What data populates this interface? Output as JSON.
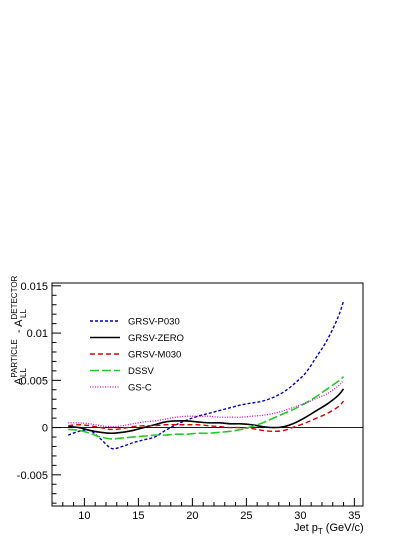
{
  "chart_data": {
    "type": "line",
    "xlabel": {
      "main": "Jet p",
      "sub": "T",
      "unit": " (GeV/c)"
    },
    "ylabel": {
      "a1": "A",
      "a1_sub": "LL",
      "a1_sup": "PARTICLE",
      "minus": " - ",
      "a2": "A",
      "a2_sub": "LL",
      "a2_sup": "DETECTOR"
    },
    "xlim": [
      7,
      35.8
    ],
    "ylim": [
      -0.0083,
      0.0153
    ],
    "xticks": [
      {
        "value": 10,
        "label": "10"
      },
      {
        "value": 15,
        "label": "15"
      },
      {
        "value": 20,
        "label": "20"
      },
      {
        "value": 25,
        "label": "25"
      },
      {
        "value": 30,
        "label": "30"
      },
      {
        "value": 35,
        "label": "35"
      }
    ],
    "yticks": [
      {
        "value": -0.005,
        "label": "-0.005"
      },
      {
        "value": 0,
        "label": "0"
      },
      {
        "value": 0.005,
        "label": "0.005"
      },
      {
        "value": 0.01,
        "label": "0.01"
      },
      {
        "value": 0.015,
        "label": "0.015"
      }
    ],
    "zero_line": true,
    "legend_position": "upper-left",
    "series": [
      {
        "name": "GRSV-P030",
        "color": "#0000cc",
        "dash": "3,2",
        "width": 1.4,
        "x": [
          8.5,
          9.5,
          10.5,
          11.5,
          12.5,
          13.5,
          14.5,
          15.5,
          16.5,
          17.5,
          18.5,
          19.5,
          20.5,
          21.5,
          22.5,
          23.5,
          24.5,
          25.5,
          26.5,
          27.5,
          28.5,
          29.5,
          30.5,
          31.5,
          32.5,
          33.5,
          34.0
        ],
        "y": [
          -0.0008,
          -0.0004,
          -0.0003,
          -0.0012,
          -0.0022,
          -0.002,
          -0.0016,
          -0.0013,
          -0.001,
          -0.0003,
          0.0003,
          0.0008,
          0.0012,
          0.0015,
          0.0018,
          0.0021,
          0.0024,
          0.0026,
          0.0028,
          0.0032,
          0.0038,
          0.0047,
          0.0058,
          0.0075,
          0.0093,
          0.0117,
          0.0134
        ]
      },
      {
        "name": "GRSV-ZERO",
        "color": "#000000",
        "dash": "",
        "width": 1.6,
        "x": [
          8.5,
          9.5,
          10.5,
          11.5,
          12.5,
          13.5,
          14.5,
          15.5,
          16.5,
          17.5,
          18.5,
          19.5,
          20.5,
          21.5,
          22.5,
          23.5,
          24.5,
          25.5,
          26.5,
          27.5,
          28.5,
          29.5,
          30.5,
          31.5,
          32.5,
          33.5,
          34.0
        ],
        "y": [
          0.0001,
          0.0,
          -0.0003,
          -0.0005,
          -0.0006,
          -0.0005,
          -0.0003,
          0.0,
          0.0003,
          0.0006,
          0.0007,
          0.0007,
          0.0006,
          0.0005,
          0.0005,
          0.0004,
          0.0004,
          0.0003,
          0.0001,
          0.0,
          0.0001,
          0.0005,
          0.0011,
          0.0018,
          0.0025,
          0.0034,
          0.0041
        ]
      },
      {
        "name": "GRSV-M030",
        "color": "#dd0000",
        "dash": "5,3",
        "width": 1.4,
        "x": [
          8.5,
          9.5,
          10.5,
          11.5,
          12.5,
          13.5,
          14.5,
          15.5,
          16.5,
          17.5,
          18.5,
          19.5,
          20.5,
          21.5,
          22.5,
          23.5,
          24.5,
          25.5,
          26.5,
          27.5,
          28.5,
          29.5,
          30.5,
          31.5,
          32.5,
          33.5,
          34.0
        ],
        "y": [
          0.0002,
          0.0003,
          0.0002,
          0.0,
          -0.0002,
          -0.0001,
          0.0001,
          0.0002,
          0.0002,
          0.0003,
          0.0003,
          0.0003,
          0.0003,
          0.0002,
          0.0001,
          0.0,
          0.0,
          -0.0001,
          -0.0003,
          -0.0004,
          -0.0003,
          0.0001,
          0.0005,
          0.001,
          0.0015,
          0.0022,
          0.0028
        ]
      },
      {
        "name": "DSSV",
        "color": "#22cc22",
        "dash": "9,3",
        "width": 1.6,
        "x": [
          8.5,
          9.5,
          10.5,
          11.5,
          12.5,
          13.5,
          14.5,
          15.5,
          16.5,
          17.5,
          18.5,
          19.5,
          20.5,
          21.5,
          22.5,
          23.5,
          24.5,
          25.5,
          26.5,
          27.5,
          28.5,
          29.5,
          30.5,
          31.5,
          32.5,
          33.5,
          34.0
        ],
        "y": [
          -0.0002,
          -0.0003,
          -0.0006,
          -0.001,
          -0.0012,
          -0.0011,
          -0.001,
          -0.0009,
          -0.0008,
          -0.0008,
          -0.0007,
          -0.0007,
          -0.0006,
          -0.0006,
          -0.0005,
          -0.0004,
          -0.0002,
          0.0001,
          0.0005,
          0.001,
          0.0015,
          0.002,
          0.0026,
          0.0033,
          0.0041,
          0.0049,
          0.0054
        ]
      },
      {
        "name": "GS-C",
        "color": "#dd00dd",
        "dash": "1,1.5",
        "width": 1.3,
        "x": [
          8.5,
          9.5,
          10.5,
          11.5,
          12.5,
          13.5,
          14.5,
          15.5,
          16.5,
          17.5,
          18.5,
          19.5,
          20.5,
          21.5,
          22.5,
          23.5,
          24.5,
          25.5,
          26.5,
          27.5,
          28.5,
          29.5,
          30.5,
          31.5,
          32.5,
          33.5,
          34.0
        ],
        "y": [
          0.0005,
          0.0005,
          0.0004,
          0.0002,
          0.0001,
          0.0002,
          0.0004,
          0.0006,
          0.0007,
          0.0009,
          0.0011,
          0.0012,
          0.0012,
          0.0012,
          0.0011,
          0.0011,
          0.0011,
          0.0012,
          0.0013,
          0.0015,
          0.0018,
          0.0022,
          0.0026,
          0.0031,
          0.0036,
          0.0044,
          0.005
        ]
      }
    ]
  }
}
